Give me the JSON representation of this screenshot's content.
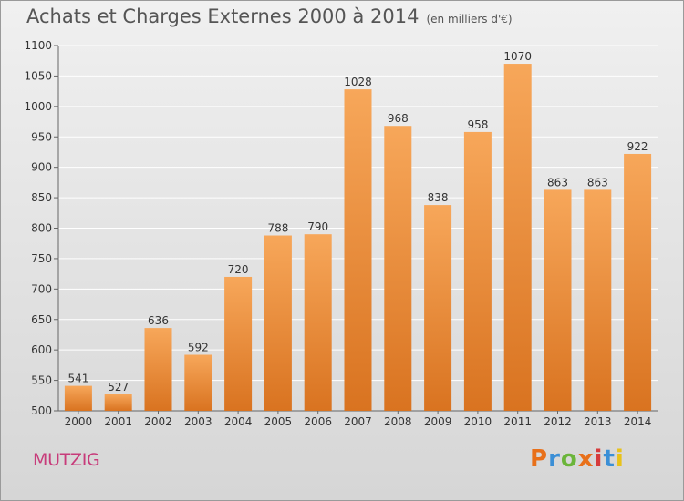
{
  "title": "Achats et Charges Externes 2000 à 2014",
  "title_unit": "(en milliers d'€)",
  "city": "MUTZIG",
  "logo": "Proxiti",
  "logo_colors": [
    "#e8701a",
    "#3b8fd6",
    "#6bb53a",
    "#e8701a",
    "#d63b3b",
    "#3b8fd6",
    "#e8c21a"
  ],
  "colors": {
    "bar_top": "#f7a75a",
    "bar_bottom": "#d97320",
    "grid": "#ffffff",
    "city": "#c73b7a"
  },
  "chart_data": {
    "type": "bar",
    "title": "Achats et Charges Externes 2000 à 2014",
    "categories": [
      "2000",
      "2001",
      "2002",
      "2003",
      "2004",
      "2005",
      "2006",
      "2007",
      "2008",
      "2009",
      "2010",
      "2011",
      "2012",
      "2013",
      "2014"
    ],
    "values": [
      541,
      527,
      636,
      592,
      720,
      788,
      790,
      1028,
      968,
      838,
      958,
      1070,
      863,
      863,
      922
    ],
    "ylim": [
      500,
      1100
    ],
    "yticks": [
      500,
      550,
      600,
      650,
      700,
      750,
      800,
      850,
      900,
      950,
      1000,
      1050,
      1100
    ],
    "grid": true,
    "xlabel": "",
    "ylabel": ""
  }
}
